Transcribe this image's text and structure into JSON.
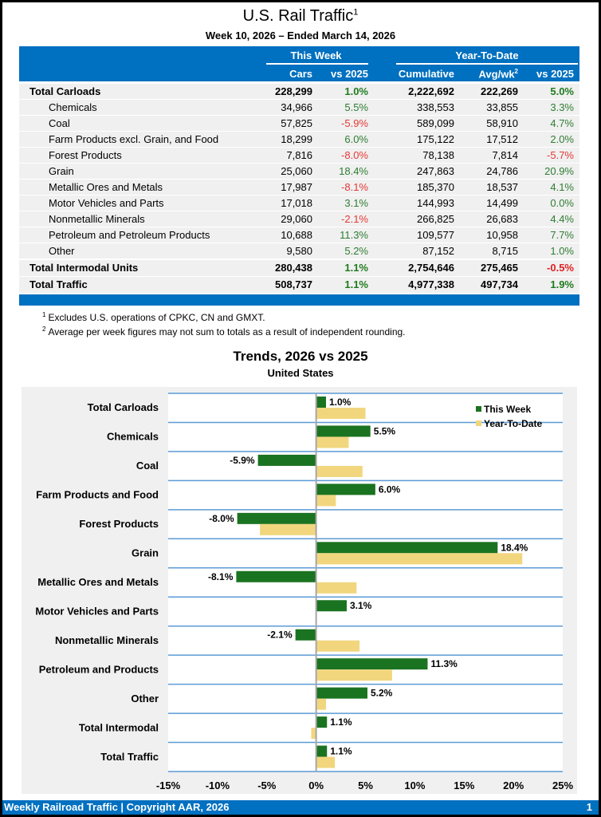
{
  "header": {
    "title": "U.S. Rail Traffic",
    "title_footnote": "1",
    "subtitle": "Week 10, 2026 – Ended March 14, 2026"
  },
  "table": {
    "group_headers": {
      "this_week": "This Week",
      "ytd": "Year-To-Date"
    },
    "columns": {
      "cars": "Cars",
      "tw_vs": "vs 2025",
      "cumulative": "Cumulative",
      "avg": "Avg/wk",
      "avg_footnote": "2",
      "ytd_vs": "vs 2025"
    },
    "rows": [
      {
        "label": "Total Carloads",
        "bold": true,
        "sub": false,
        "cars": "228,299",
        "tw_vs": "1.0%",
        "cumulative": "2,222,692",
        "avg": "222,269",
        "ytd_vs": "5.0%"
      },
      {
        "label": "Chemicals",
        "bold": false,
        "sub": true,
        "cars": "34,966",
        "tw_vs": "5.5%",
        "cumulative": "338,553",
        "avg": "33,855",
        "ytd_vs": "3.3%"
      },
      {
        "label": "Coal",
        "bold": false,
        "sub": true,
        "cars": "57,825",
        "tw_vs": "-5.9%",
        "cumulative": "589,099",
        "avg": "58,910",
        "ytd_vs": "4.7%"
      },
      {
        "label": "Farm Products excl. Grain, and Food",
        "bold": false,
        "sub": true,
        "cars": "18,299",
        "tw_vs": "6.0%",
        "cumulative": "175,122",
        "avg": "17,512",
        "ytd_vs": "2.0%"
      },
      {
        "label": "Forest Products",
        "bold": false,
        "sub": true,
        "cars": "7,816",
        "tw_vs": "-8.0%",
        "cumulative": "78,138",
        "avg": "7,814",
        "ytd_vs": "-5.7%"
      },
      {
        "label": "Grain",
        "bold": false,
        "sub": true,
        "cars": "25,060",
        "tw_vs": "18.4%",
        "cumulative": "247,863",
        "avg": "24,786",
        "ytd_vs": "20.9%"
      },
      {
        "label": "Metallic Ores and Metals",
        "bold": false,
        "sub": true,
        "cars": "17,987",
        "tw_vs": "-8.1%",
        "cumulative": "185,370",
        "avg": "18,537",
        "ytd_vs": "4.1%"
      },
      {
        "label": "Motor Vehicles and Parts",
        "bold": false,
        "sub": true,
        "cars": "17,018",
        "tw_vs": "3.1%",
        "cumulative": "144,993",
        "avg": "14,499",
        "ytd_vs": "0.0%"
      },
      {
        "label": "Nonmetallic Minerals",
        "bold": false,
        "sub": true,
        "cars": "29,060",
        "tw_vs": "-2.1%",
        "cumulative": "266,825",
        "avg": "26,683",
        "ytd_vs": "4.4%"
      },
      {
        "label": "Petroleum and Petroleum Products",
        "bold": false,
        "sub": true,
        "cars": "10,688",
        "tw_vs": "11.3%",
        "cumulative": "109,577",
        "avg": "10,958",
        "ytd_vs": "7.7%"
      },
      {
        "label": "Other",
        "bold": false,
        "sub": true,
        "cars": "9,580",
        "tw_vs": "5.2%",
        "cumulative": "87,152",
        "avg": "8,715",
        "ytd_vs": "1.0%"
      },
      {
        "label": "Total Intermodal Units",
        "bold": true,
        "sub": false,
        "cars": "280,438",
        "tw_vs": "1.1%",
        "cumulative": "2,754,646",
        "avg": "275,465",
        "ytd_vs": "-0.5%"
      },
      {
        "label": "Total Traffic",
        "bold": true,
        "sub": false,
        "cars": "508,737",
        "tw_vs": "1.1%",
        "cumulative": "4,977,338",
        "avg": "497,734",
        "ytd_vs": "1.9%"
      }
    ]
  },
  "notes": [
    {
      "mark": "1",
      "text": "Excludes U.S. operations of CPKC, CN and GMXT."
    },
    {
      "mark": "2",
      "text": "Average per week figures may not sum to totals as a result of independent rounding."
    }
  ],
  "colors": {
    "brand_blue": "#0070C0",
    "this_week": "#1A7320",
    "ytd": "#F2D67E",
    "positive": "#2E7D32",
    "negative": "#E53935"
  },
  "chart_data": {
    "type": "bar",
    "orientation": "horizontal",
    "title": "Trends, 2026 vs 2025",
    "subtitle": "United States",
    "categories": [
      "Total Carloads",
      "Chemicals",
      "Coal",
      "Farm Products and Food",
      "Forest Products",
      "Grain",
      "Metallic Ores and Metals",
      "Motor Vehicles and Parts",
      "Nonmetallic Minerals",
      "Petroleum and Products",
      "Other",
      "Total Intermodal",
      "Total Traffic"
    ],
    "series": [
      {
        "name": "This Week",
        "values": [
          1.0,
          5.5,
          -5.9,
          6.0,
          -8.0,
          18.4,
          -8.1,
          3.1,
          -2.1,
          11.3,
          5.2,
          1.1,
          1.1
        ],
        "labels": [
          "1.0%",
          "5.5%",
          "-5.9%",
          "6.0%",
          "-8.0%",
          "18.4%",
          "-8.1%",
          "3.1%",
          "-2.1%",
          "11.3%",
          "5.2%",
          "1.1%",
          "1.1%"
        ]
      },
      {
        "name": "Year-To-Date",
        "values": [
          5.0,
          3.3,
          4.7,
          2.0,
          -5.7,
          20.9,
          4.1,
          0.0,
          4.4,
          7.7,
          1.0,
          -0.5,
          1.9
        ]
      }
    ],
    "xlabel": "",
    "ylabel": "",
    "xlim": [
      -15,
      25
    ],
    "xticks": [
      "-15%",
      "-10%",
      "-5%",
      "0%",
      "5%",
      "10%",
      "15%",
      "20%",
      "25%"
    ],
    "xtick_values": [
      -15,
      -10,
      -5,
      0,
      5,
      10,
      15,
      20,
      25
    ],
    "grid": "horizontal separators",
    "legend": "top-right"
  },
  "footer": {
    "left": "Weekly Railroad Traffic | Copyright AAR, 2026",
    "page": "1"
  }
}
